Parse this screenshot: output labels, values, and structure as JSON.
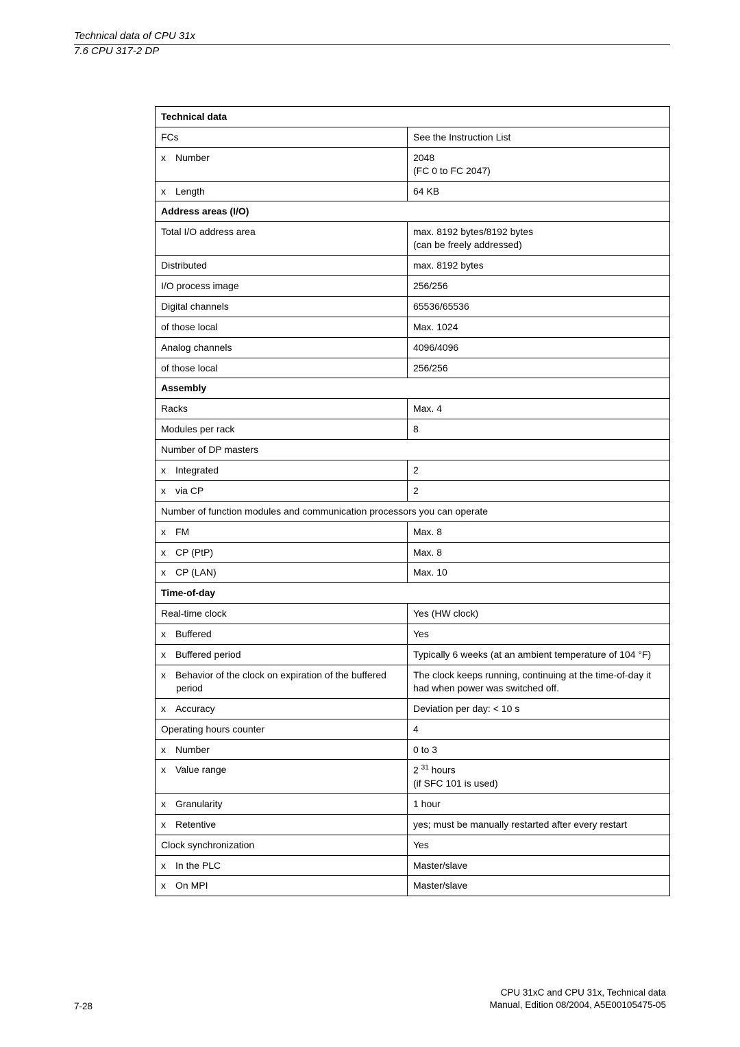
{
  "header": {
    "title": "Technical data of CPU 31x",
    "sub": "7.6 CPU 317-2 DP"
  },
  "table": {
    "header": "Technical data",
    "rows": [
      {
        "c1": "FCs",
        "c2": "See the Instruction List",
        "span": false,
        "bold": false
      },
      {
        "c1": "x Number",
        "c2": "2048\n(FC 0 to FC 2047)",
        "span": false,
        "bold": false
      },
      {
        "c1": "x Length",
        "c2": "64 KB",
        "span": false,
        "bold": false
      },
      {
        "c1": "Address areas (I/O)",
        "c2": "",
        "span": true,
        "bold": true
      },
      {
        "c1": "Total I/O address area",
        "c2": "max. 8192 bytes/8192 bytes\n(can be freely addressed)",
        "span": false,
        "bold": false
      },
      {
        "c1": "Distributed",
        "c2": "max. 8192 bytes",
        "span": false,
        "bold": false
      },
      {
        "c1": "I/O process image",
        "c2": "256/256",
        "span": false,
        "bold": false
      },
      {
        "c1": "Digital channels",
        "c2": "65536/65536",
        "span": false,
        "bold": false
      },
      {
        "c1": "of those local",
        "c2": "Max. 1024",
        "span": false,
        "bold": false
      },
      {
        "c1": "Analog channels",
        "c2": "4096/4096",
        "span": false,
        "bold": false
      },
      {
        "c1": "of those local",
        "c2": "256/256",
        "span": false,
        "bold": false
      },
      {
        "c1": "Assembly",
        "c2": "",
        "span": true,
        "bold": true
      },
      {
        "c1": "Racks",
        "c2": "Max. 4",
        "span": false,
        "bold": false
      },
      {
        "c1": "Modules per rack",
        "c2": "8",
        "span": false,
        "bold": false
      },
      {
        "c1": "Number of DP masters",
        "c2": "",
        "span": true,
        "bold": false
      },
      {
        "c1": "x Integrated",
        "c2": "2",
        "span": false,
        "bold": false
      },
      {
        "c1": "x via CP",
        "c2": "2",
        "span": false,
        "bold": false
      },
      {
        "c1": "Number of function modules and communication processors you can operate",
        "c2": "",
        "span": true,
        "bold": false
      },
      {
        "c1": "x FM",
        "c2": "Max. 8",
        "span": false,
        "bold": false
      },
      {
        "c1": "x CP (PtP)",
        "c2": "Max. 8",
        "span": false,
        "bold": false
      },
      {
        "c1": "x CP (LAN)",
        "c2": "Max. 10",
        "span": false,
        "bold": false
      },
      {
        "c1": "Time-of-day",
        "c2": "",
        "span": true,
        "bold": true
      },
      {
        "c1": "Real-time clock",
        "c2": "Yes (HW clock)",
        "span": false,
        "bold": false
      },
      {
        "c1": "x Buffered",
        "c2": "Yes",
        "span": false,
        "bold": false
      },
      {
        "c1": "x Buffered period",
        "c2": "Typically 6 weeks (at an ambient temperature of 104 °F)",
        "span": false,
        "bold": false
      },
      {
        "c1": "x Behavior of the clock on expiration of the buffered period",
        "c2": "The clock keeps running, continuing at the time-of-day it had when power was switched off.",
        "span": false,
        "bold": false,
        "hang": true
      },
      {
        "c1": "x Accuracy",
        "c2": "Deviation per day: < 10 s",
        "span": false,
        "bold": false
      },
      {
        "c1": "Operating hours counter",
        "c2": "4",
        "span": false,
        "bold": false
      },
      {
        "c1": "x Number",
        "c2": "0 to 3",
        "span": false,
        "bold": false
      },
      {
        "c1": "x Value range",
        "c2_html": "2 <span class=\"sup\">31</span> hours\n(if SFC 101 is used)",
        "span": false,
        "bold": false
      },
      {
        "c1": "x Granularity",
        "c2": "1 hour",
        "span": false,
        "bold": false
      },
      {
        "c1": "x Retentive",
        "c2": "yes; must be manually restarted after every restart",
        "span": false,
        "bold": false
      },
      {
        "c1": "Clock synchronization",
        "c2": "Yes",
        "span": false,
        "bold": false
      },
      {
        "c1": "x In the PLC",
        "c2": "Master/slave",
        "span": false,
        "bold": false
      },
      {
        "c1": "x On MPI",
        "c2": "Master/slave",
        "span": false,
        "bold": false
      }
    ]
  },
  "footer": {
    "page": "7-28",
    "right1": "CPU 31xC and CPU 31x, Technical data",
    "right2": "Manual, Edition 08/2004, A5E00105475-05"
  }
}
